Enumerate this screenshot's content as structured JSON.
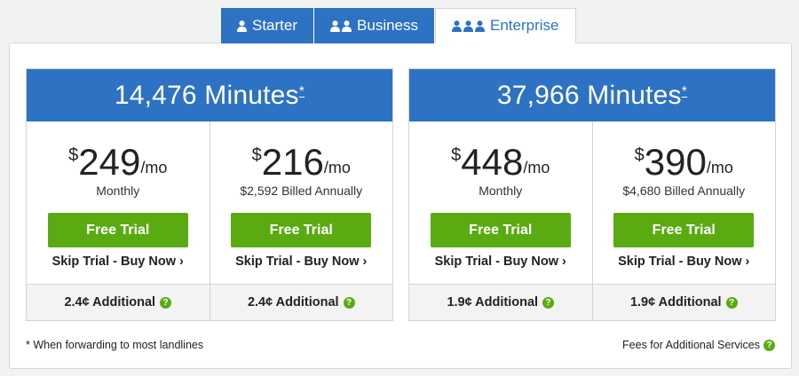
{
  "tabs": [
    {
      "label": "Starter",
      "icon_count": 1,
      "active": false
    },
    {
      "label": "Business",
      "icon_count": 2,
      "active": false
    },
    {
      "label": "Enterprise",
      "icon_count": 3,
      "active": true
    }
  ],
  "plans": [
    {
      "minutes": "14,476 Minutes",
      "marker": "*",
      "options": [
        {
          "currency": "$",
          "amount": "249",
          "period": "/mo",
          "billing": "Monthly",
          "cta": "Free Trial",
          "buy": "Skip Trial - Buy Now ›",
          "additional": "2.4¢ Additional"
        },
        {
          "currency": "$",
          "amount": "216",
          "period": "/mo",
          "billing": "$2,592 Billed Annually",
          "cta": "Free Trial",
          "buy": "Skip Trial - Buy Now ›",
          "additional": "2.4¢ Additional"
        }
      ]
    },
    {
      "minutes": "37,966 Minutes",
      "marker": "*",
      "options": [
        {
          "currency": "$",
          "amount": "448",
          "period": "/mo",
          "billing": "Monthly",
          "cta": "Free Trial",
          "buy": "Skip Trial - Buy Now ›",
          "additional": "1.9¢ Additional"
        },
        {
          "currency": "$",
          "amount": "390",
          "period": "/mo",
          "billing": "$4,680 Billed Annually",
          "cta": "Free Trial",
          "buy": "Skip Trial - Buy Now ›",
          "additional": "1.9¢ Additional"
        }
      ]
    }
  ],
  "footer": {
    "note": "* When forwarding to most landlines",
    "fees_link": "Fees for Additional Services"
  },
  "help_icon": "?",
  "colors": {
    "brand_blue": "#2e72c3",
    "cta_green": "#5aab12"
  }
}
